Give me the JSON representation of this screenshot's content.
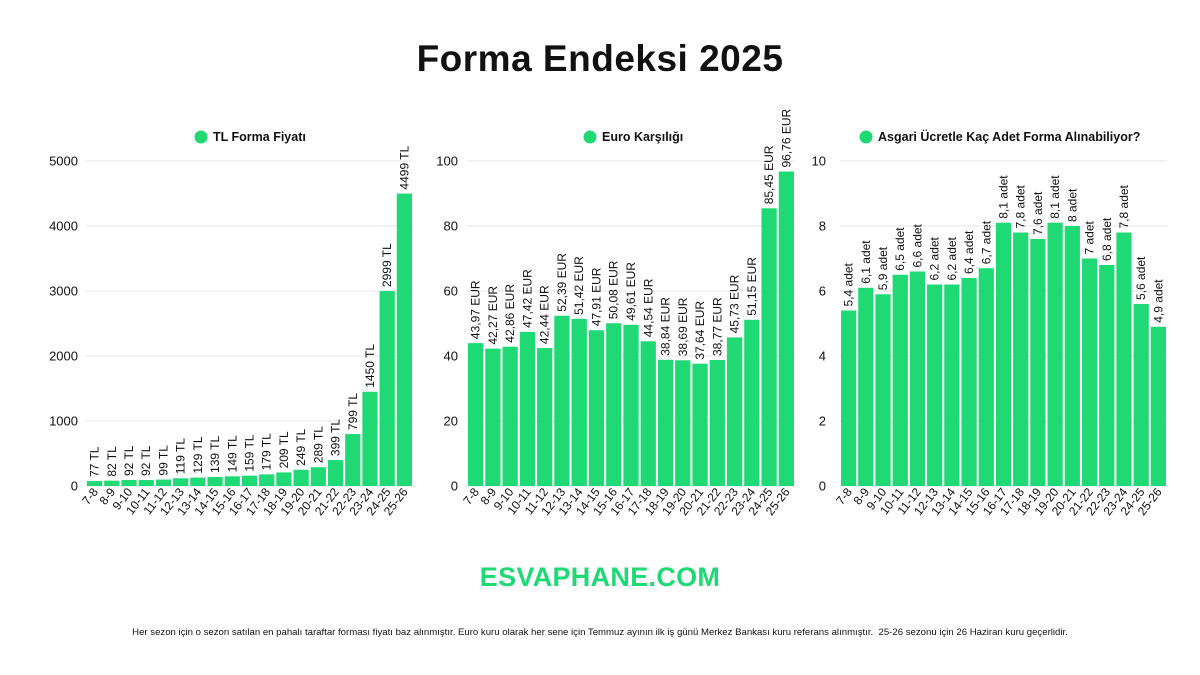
{
  "title": "Forma Endeksi 2025",
  "brand": "ESVAPHANE.COM",
  "footnote": "Her sezon için o sezon satılan en pahalı taraftar forması fiyatı baz alınmıştır. Euro kuru olarak her sene için Temmuz ayının ilk iş günü Merkez Bankası kuru referans alınmıştır.  25-26 sezonu için 26 Haziran kuru geçerlidir.",
  "colors": {
    "bar": "#1fd975",
    "grid": "#e6e6e6",
    "text": "#111111"
  },
  "chart_data": [
    {
      "type": "bar",
      "legend": "TL Forma Fiyatı",
      "categories": [
        "7-8",
        "8-9",
        "9-10",
        "10-11",
        "11-12",
        "12-13",
        "13-14",
        "14-15",
        "15-16",
        "16-17",
        "17-18",
        "18-19",
        "19-20",
        "20-21",
        "21-22",
        "22-23",
        "23-24",
        "24-25",
        "25-26"
      ],
      "values": [
        77,
        82,
        92,
        92,
        99,
        119,
        129,
        139,
        149,
        159,
        179,
        209,
        249,
        289,
        399,
        799,
        1450,
        2999,
        4499
      ],
      "labels": [
        "77 TL",
        "82 TL",
        "92 TL",
        "92 TL",
        "99 TL",
        "119 TL",
        "129 TL",
        "139 TL",
        "149 TL",
        "159 TL",
        "179 TL",
        "209 TL",
        "249 TL",
        "289 TL",
        "399 TL",
        "799 TL",
        "1450 TL",
        "2999 TL",
        "4499 TL"
      ],
      "ylim": [
        0,
        5000
      ],
      "yticks": [
        0,
        1000,
        2000,
        3000,
        4000,
        5000
      ],
      "grid": true
    },
    {
      "type": "bar",
      "legend": "Euro Karşılığı",
      "categories": [
        "7-8",
        "8-9",
        "9-10",
        "10-11",
        "11-12",
        "12-13",
        "13-14",
        "14-15",
        "15-16",
        "16-17",
        "17-18",
        "18-19",
        "19-20",
        "20-21",
        "21-22",
        "22-23",
        "23-24",
        "24-25",
        "25-26"
      ],
      "values": [
        43.97,
        42.27,
        42.86,
        47.42,
        42.44,
        52.39,
        51.42,
        47.91,
        50.08,
        49.61,
        44.54,
        38.84,
        38.69,
        37.64,
        38.77,
        45.73,
        51.15,
        85.45,
        96.76
      ],
      "labels": [
        "43,97 EUR",
        "42,27 EUR",
        "42,86 EUR",
        "47,42 EUR",
        "42,44 EUR",
        "52,39 EUR",
        "51,42 EUR",
        "47,91 EUR",
        "50,08 EUR",
        "49,61 EUR",
        "44,54 EUR",
        "38,84 EUR",
        "38,69 EUR",
        "37,64 EUR",
        "38,77 EUR",
        "45,73 EUR",
        "51,15 EUR",
        "85,45 EUR",
        "96,76 EUR"
      ],
      "ylim": [
        0,
        100
      ],
      "yticks": [
        0,
        20,
        40,
        60,
        80,
        100
      ],
      "grid": true
    },
    {
      "type": "bar",
      "legend": "Asgari Ücretle Kaç Adet Forma Alınabiliyor?",
      "categories": [
        "7-8",
        "8-9",
        "9-10",
        "10-11",
        "11-12",
        "12-13",
        "13-14",
        "14-15",
        "15-16",
        "16-17",
        "17-18",
        "18-19",
        "19-20",
        "20-21",
        "21-22",
        "22-23",
        "23-24",
        "24-25",
        "25-26"
      ],
      "values": [
        5.4,
        6.1,
        5.9,
        6.5,
        6.6,
        6.2,
        6.2,
        6.4,
        6.7,
        8.1,
        7.8,
        7.6,
        8.1,
        8,
        7,
        6.8,
        7.8,
        5.6,
        4.9
      ],
      "labels": [
        "5,4 adet",
        "6,1 adet",
        "5,9 adet",
        "6,5 adet",
        "6,6 adet",
        "6,2 adet",
        "6,2 adet",
        "6,4 adet",
        "6,7 adet",
        "8,1 adet",
        "7,8 adet",
        "7,6 adet",
        "8,1 adet",
        "8 adet",
        "7 adet",
        "6,8 adet",
        "7,8  adet",
        "5,6 adet",
        "4,9 adet"
      ],
      "ylim": [
        0,
        10
      ],
      "yticks": [
        0,
        2,
        4,
        6,
        8,
        10
      ],
      "grid": true
    }
  ]
}
